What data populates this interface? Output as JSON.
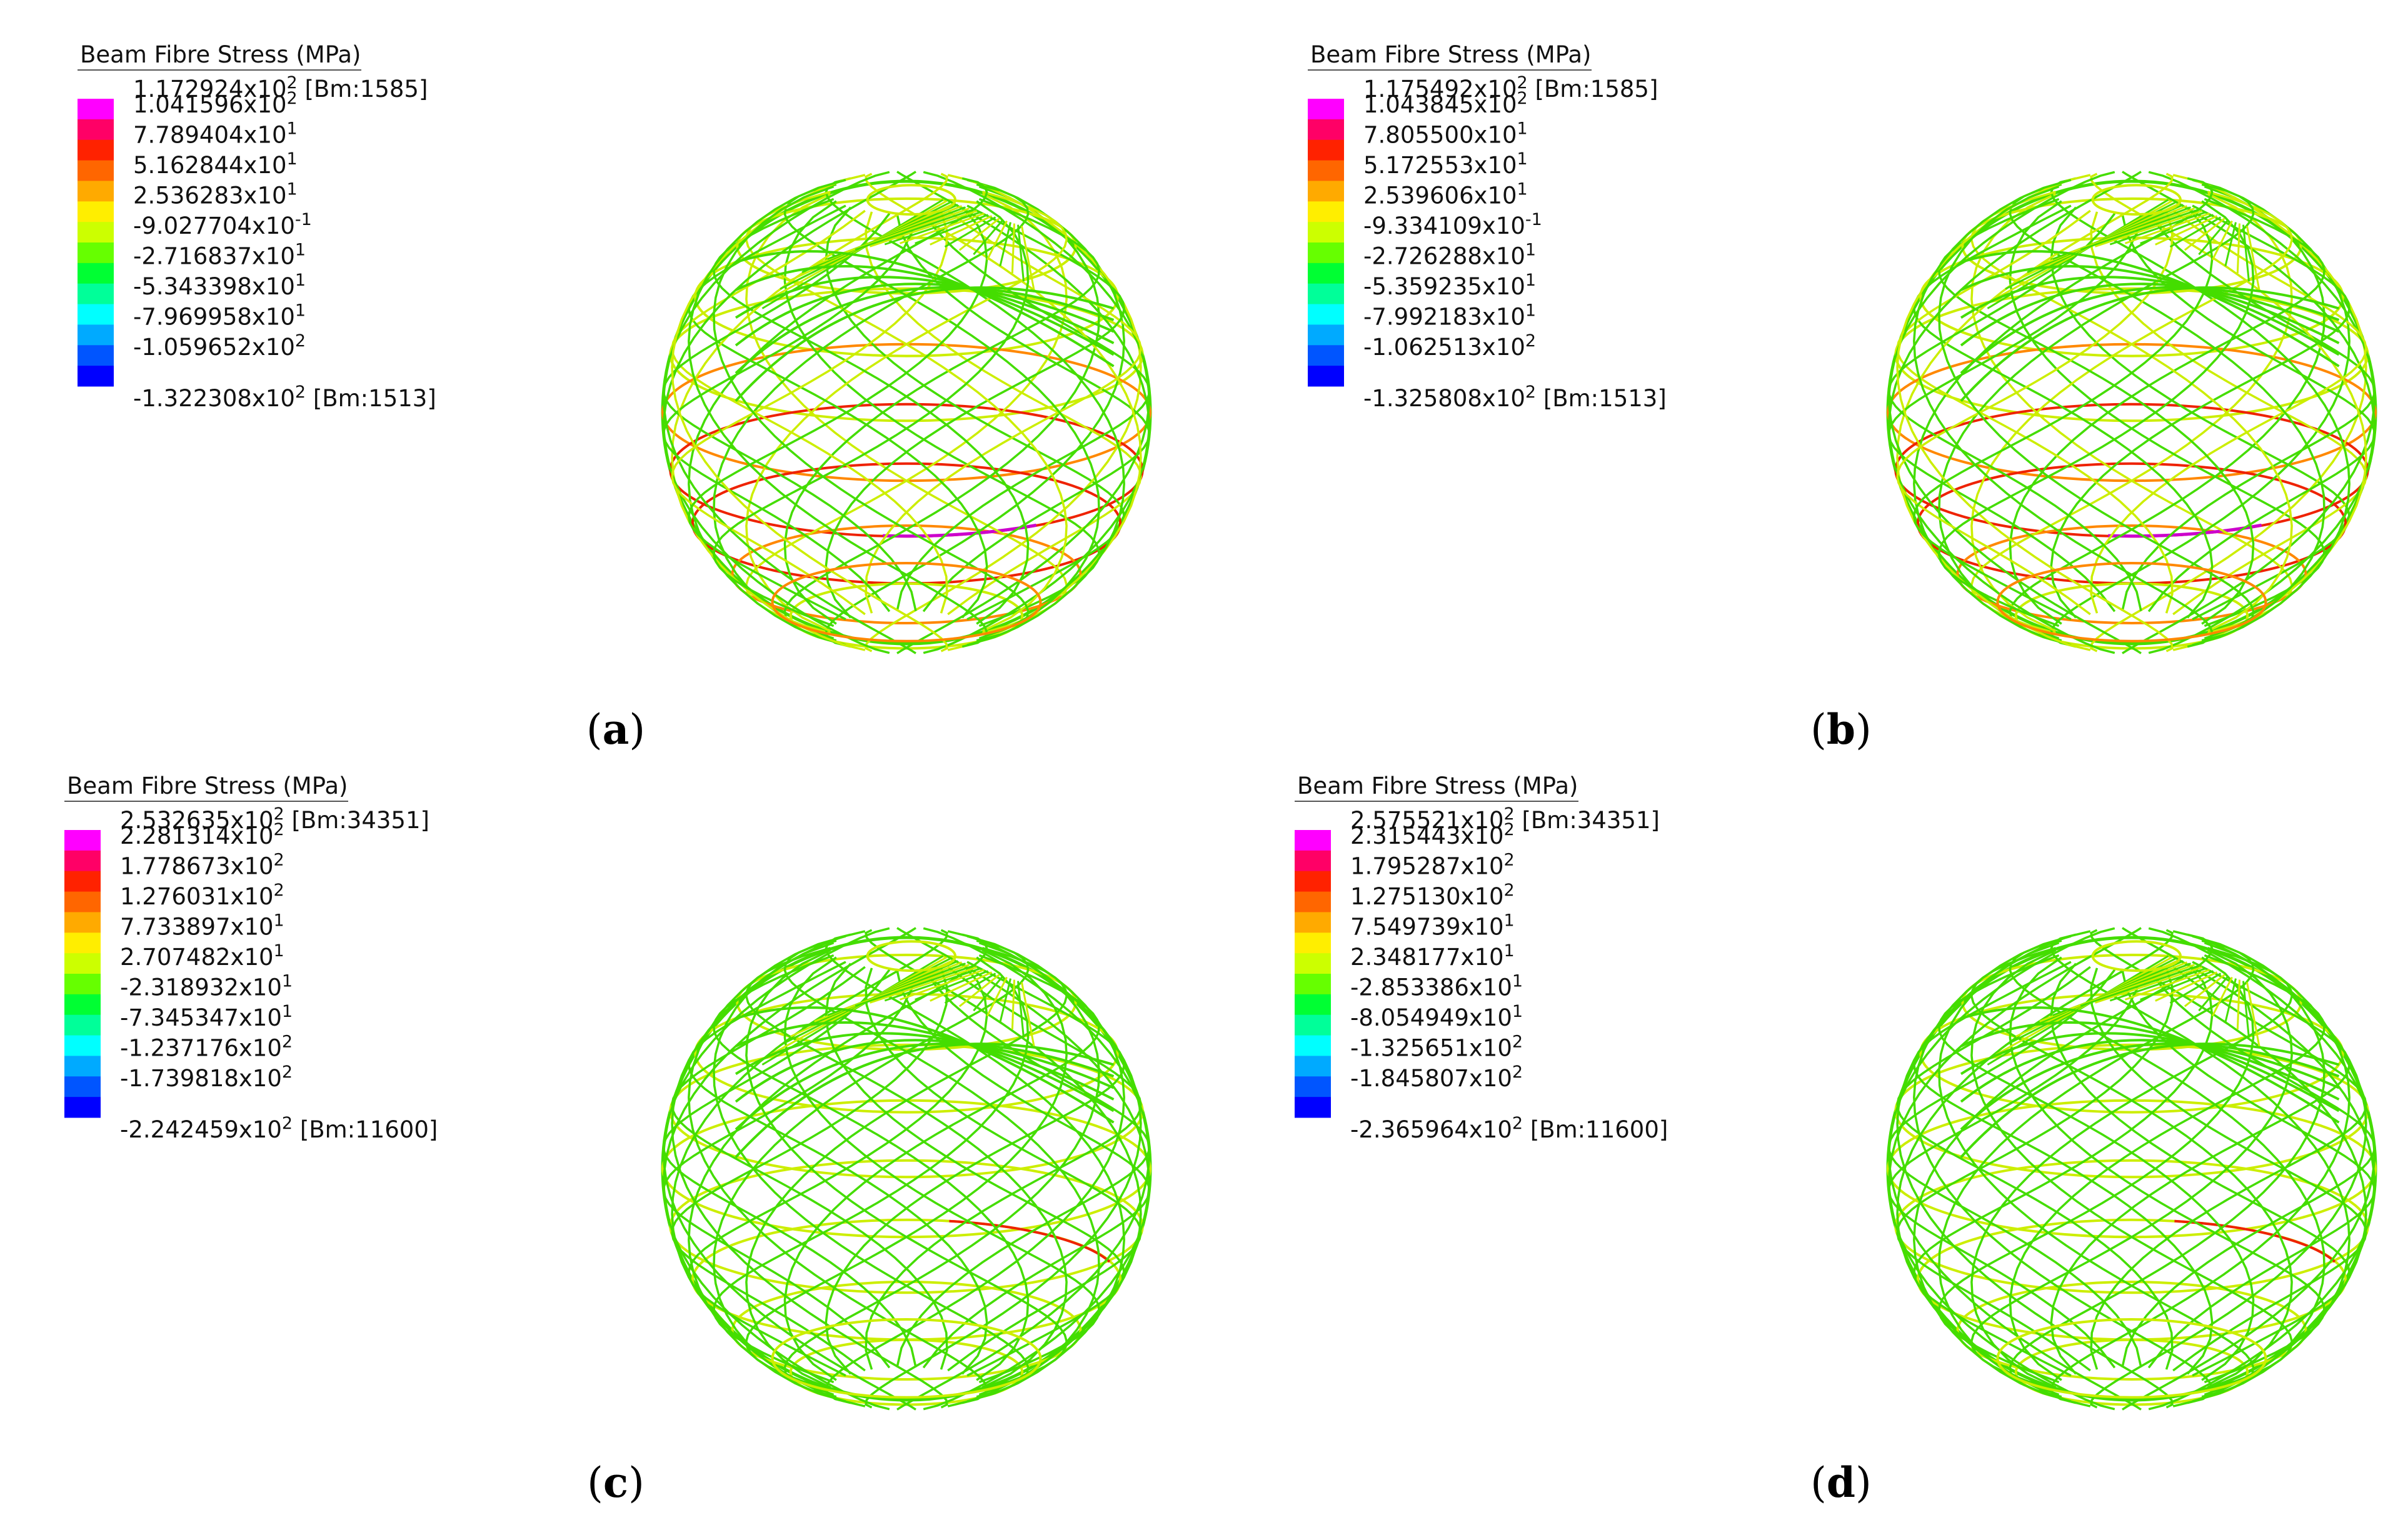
{
  "panels": [
    {
      "id": "a",
      "legend_title": "Beam Fibre Stress  (MPa)",
      "ticks": [
        {
          "mantissa": "1.172924x10",
          "exp": "2",
          "suffix": " [Bm:1585]"
        },
        {
          "mantissa": "1.041596x10",
          "exp": "2",
          "suffix": ""
        },
        {
          "mantissa": "7.789404x10",
          "exp": "1",
          "suffix": ""
        },
        {
          "mantissa": "5.162844x10",
          "exp": "1",
          "suffix": ""
        },
        {
          "mantissa": "2.536283x10",
          "exp": "1",
          "suffix": ""
        },
        {
          "mantissa": "-9.027704x10",
          "exp": "-1",
          "suffix": ""
        },
        {
          "mantissa": "-2.716837x10",
          "exp": "1",
          "suffix": ""
        },
        {
          "mantissa": "-5.343398x10",
          "exp": "1",
          "suffix": ""
        },
        {
          "mantissa": "-7.969958x10",
          "exp": "1",
          "suffix": ""
        },
        {
          "mantissa": "-1.059652x10",
          "exp": "2",
          "suffix": ""
        },
        {
          "mantissa": "-1.322308x10",
          "exp": "2",
          "suffix": " [Bm:1513]"
        }
      ],
      "caption": "a",
      "mesh_tint": "mixed"
    },
    {
      "id": "b",
      "legend_title": "Beam Fibre Stress  (MPa)",
      "ticks": [
        {
          "mantissa": "1.175492x10",
          "exp": "2",
          "suffix": " [Bm:1585]"
        },
        {
          "mantissa": "1.043845x10",
          "exp": "2",
          "suffix": ""
        },
        {
          "mantissa": "7.805500x10",
          "exp": "1",
          "suffix": ""
        },
        {
          "mantissa": "5.172553x10",
          "exp": "1",
          "suffix": ""
        },
        {
          "mantissa": "2.539606x10",
          "exp": "1",
          "suffix": ""
        },
        {
          "mantissa": "-9.334109x10",
          "exp": "-1",
          "suffix": ""
        },
        {
          "mantissa": "-2.726288x10",
          "exp": "1",
          "suffix": ""
        },
        {
          "mantissa": "-5.359235x10",
          "exp": "1",
          "suffix": ""
        },
        {
          "mantissa": "-7.992183x10",
          "exp": "1",
          "suffix": ""
        },
        {
          "mantissa": "-1.062513x10",
          "exp": "2",
          "suffix": ""
        },
        {
          "mantissa": "-1.325808x10",
          "exp": "2",
          "suffix": " [Bm:1513]"
        }
      ],
      "caption": "b",
      "mesh_tint": "mixed"
    },
    {
      "id": "c",
      "legend_title": "Beam Fibre Stress  (MPa)",
      "ticks": [
        {
          "mantissa": "2.532635x10",
          "exp": "2",
          "suffix": " [Bm:34351]"
        },
        {
          "mantissa": "2.281314x10",
          "exp": "2",
          "suffix": ""
        },
        {
          "mantissa": "1.778673x10",
          "exp": "2",
          "suffix": ""
        },
        {
          "mantissa": "1.276031x10",
          "exp": "2",
          "suffix": ""
        },
        {
          "mantissa": "7.733897x10",
          "exp": "1",
          "suffix": ""
        },
        {
          "mantissa": "2.707482x10",
          "exp": "1",
          "suffix": ""
        },
        {
          "mantissa": "-2.318932x10",
          "exp": "1",
          "suffix": ""
        },
        {
          "mantissa": "-7.345347x10",
          "exp": "1",
          "suffix": ""
        },
        {
          "mantissa": "-1.237176x10",
          "exp": "2",
          "suffix": ""
        },
        {
          "mantissa": "-1.739818x10",
          "exp": "2",
          "suffix": ""
        },
        {
          "mantissa": "-2.242459x10",
          "exp": "2",
          "suffix": " [Bm:11600]"
        }
      ],
      "caption": "c",
      "mesh_tint": "green"
    },
    {
      "id": "d",
      "legend_title": "Beam Fibre Stress  (MPa)",
      "ticks": [
        {
          "mantissa": "2.575521x10",
          "exp": "2",
          "suffix": " [Bm:34351]"
        },
        {
          "mantissa": "2.315443x10",
          "exp": "2",
          "suffix": ""
        },
        {
          "mantissa": "1.795287x10",
          "exp": "2",
          "suffix": ""
        },
        {
          "mantissa": "1.275130x10",
          "exp": "2",
          "suffix": ""
        },
        {
          "mantissa": "7.549739x10",
          "exp": "1",
          "suffix": ""
        },
        {
          "mantissa": "2.348177x10",
          "exp": "1",
          "suffix": ""
        },
        {
          "mantissa": "-2.853386x10",
          "exp": "1",
          "suffix": ""
        },
        {
          "mantissa": "-8.054949x10",
          "exp": "1",
          "suffix": ""
        },
        {
          "mantissa": "-1.325651x10",
          "exp": "2",
          "suffix": ""
        },
        {
          "mantissa": "-1.845807x10",
          "exp": "2",
          "suffix": ""
        },
        {
          "mantissa": "-2.365964x10",
          "exp": "2",
          "suffix": " [Bm:11600]"
        }
      ],
      "caption": "d",
      "mesh_tint": "green"
    }
  ],
  "colorbar": [
    "#ff00ff",
    "#ff0066",
    "#ff2200",
    "#ff6600",
    "#ffaa00",
    "#ffee00",
    "#ccff00",
    "#66ff00",
    "#00ff33",
    "#00ff99",
    "#00ffff",
    "#00aaff",
    "#0055ff",
    "#0000ff"
  ],
  "colors": {
    "mesh_green": "#44dd00",
    "mesh_yellow": "#ccee00",
    "mesh_orange": "#ff8800",
    "mesh_red": "#ee2200",
    "mesh_magenta": "#cc00cc",
    "mesh_cyan": "#00ccaa"
  }
}
